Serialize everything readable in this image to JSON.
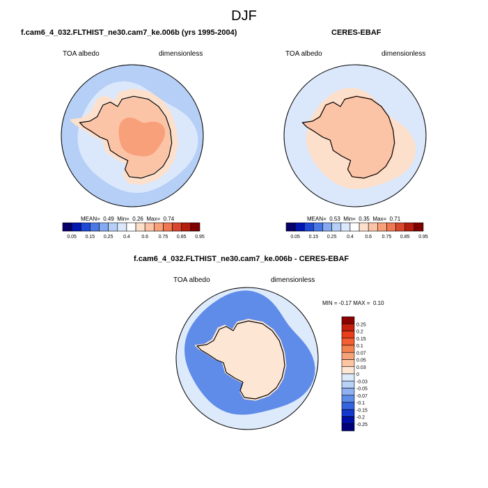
{
  "figure_title": "DJF",
  "chart_data": [
    {
      "type": "heatmap",
      "title": "f.cam6_4_032.FLTHIST_ne30.cam7_ke.006b (yrs 1995-2004)",
      "variable": "TOA albedo",
      "units": "dimensionless",
      "projection": "south polar stereographic",
      "stats": {
        "mean_label": "MEAN=",
        "mean": "0.49",
        "min_label": "Min=",
        "min": "0.26",
        "max_label": "Max=",
        "max": "0.74"
      },
      "colorbar": {
        "orientation": "horizontal",
        "tick_labels": [
          "0.05",
          "0.15",
          "0.25",
          "0.4",
          "0.6",
          "0.75",
          "0.85",
          "0.95"
        ],
        "colors": [
          "#08006a",
          "#0016b2",
          "#1f48d6",
          "#4a78e6",
          "#86aaf2",
          "#b5cff6",
          "#dbe8fb",
          "#ffffff",
          "#fde0cc",
          "#fcc4a6",
          "#f8a07a",
          "#ef7752",
          "#d9472d",
          "#b51d0e",
          "#7f0000"
        ]
      },
      "regions": [
        {
          "name": "ocean-outer",
          "value_class": "0.25-0.3",
          "color": "#b5cff6"
        },
        {
          "name": "ocean-inner",
          "value_class": "0.3-0.4",
          "color": "#dbe8fb"
        },
        {
          "name": "coastal-ice",
          "value_class": "0.4-0.6",
          "color": "#fde0cc"
        },
        {
          "name": "plateau",
          "value_class": "0.6-0.75",
          "color": "#fcc4a6"
        },
        {
          "name": "plateau-core",
          "value_class": "0.75-0.85",
          "color": "#f8a07a"
        }
      ]
    },
    {
      "type": "heatmap",
      "title": "CERES-EBAF",
      "variable": "TOA albedo",
      "units": "dimensionless",
      "projection": "south polar stereographic",
      "stats": {
        "mean_label": "MEAN=",
        "mean": "0.53",
        "min_label": "Min=",
        "min": "0.35",
        "max_label": "Max=",
        "max": "0.71"
      },
      "colorbar": {
        "orientation": "horizontal",
        "tick_labels": [
          "0.05",
          "0.15",
          "0.25",
          "0.4",
          "0.6",
          "0.75",
          "0.85",
          "0.95"
        ],
        "colors": [
          "#08006a",
          "#0016b2",
          "#1f48d6",
          "#4a78e6",
          "#86aaf2",
          "#b5cff6",
          "#dbe8fb",
          "#ffffff",
          "#fde0cc",
          "#fcc4a6",
          "#f8a07a",
          "#ef7752",
          "#d9472d",
          "#b51d0e",
          "#7f0000"
        ]
      },
      "regions": [
        {
          "name": "ocean",
          "value_class": "0.4-0.5",
          "color": "#dbe8fb"
        },
        {
          "name": "sea-ice",
          "value_class": "0.5-0.6",
          "color": "#fde0cc"
        },
        {
          "name": "continent",
          "value_class": "0.6-0.75",
          "color": "#fcc4a6"
        }
      ]
    },
    {
      "type": "heatmap",
      "title": "f.cam6_4_032.FLTHIST_ne30.cam7_ke.006b - CERES-EBAF",
      "variable": "TOA albedo",
      "units": "dimensionless",
      "projection": "south polar stereographic",
      "stats": {
        "min_label": "MIN =",
        "min": "-0.17",
        "max_label": "MAX =",
        "max": "0.10"
      },
      "colorbar": {
        "orientation": "vertical",
        "tick_labels": [
          "0.25",
          "0.2",
          "0.15",
          "0.1",
          "0.07",
          "0.05",
          "0.03",
          "0",
          "-0.03",
          "-0.05",
          "-0.07",
          "-0.1",
          "-0.15",
          "-0.2",
          "-0.25"
        ],
        "colors": [
          "#8b0000",
          "#c51f0d",
          "#e83e1c",
          "#f25f30",
          "#f48350",
          "#f7a37a",
          "#fbc5a3",
          "#fde6d4",
          "#ddeafb",
          "#b8d1f7",
          "#8fb1f1",
          "#5f8be9",
          "#3564df",
          "#1437cd",
          "#0010a6",
          "#00007a"
        ]
      },
      "regions": [
        {
          "name": "outer-ocean",
          "value_class": "-0.03-0",
          "color": "#ddeafb"
        },
        {
          "name": "ice-edge-ring",
          "value_class": "-0.1--0.05",
          "color": "#5f8be9"
        },
        {
          "name": "continent",
          "value_class": "0-0.05",
          "color": "#fde6d4"
        }
      ]
    }
  ]
}
